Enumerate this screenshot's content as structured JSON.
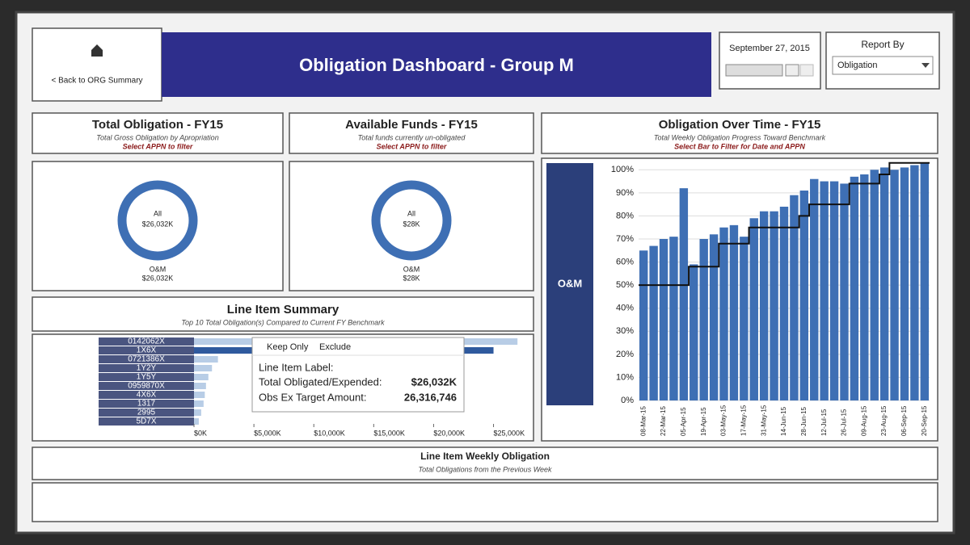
{
  "header": {
    "title": "Obligation Dashboard -  Group M",
    "back": "< Back to ORG Summary",
    "date": "September 27, 2015",
    "report_by_label": "Report By",
    "report_by_value": "Obligation"
  },
  "total_obligation": {
    "title": "Total Obligation - FY15",
    "subtitle": "Total Gross Obligation by Apropriation",
    "hint": "Select APPN to filter",
    "center_label": "All",
    "center_value": "$26,032K",
    "segment_label": "O&M",
    "segment_value": "$26,032K"
  },
  "available_funds": {
    "title": "Available Funds - FY15",
    "subtitle": "Total funds currently un-obligated",
    "hint": "Select APPN to filter",
    "center_label": "All",
    "center_value": "$28K",
    "segment_label": "O&M",
    "segment_value": "$28K"
  },
  "line_item_summary": {
    "title": "Line Item Summary",
    "subtitle": "Top 10 Total Obligation(s) Compared to Current FY Benchmark",
    "categories": [
      "0142062X",
      "1X6X",
      "0721386X",
      "1Y2Y",
      "1Y5Y",
      "0959870X",
      "4X6X",
      "1317",
      "2995",
      "5D7X"
    ],
    "values": [
      27000,
      25000,
      2000,
      1500,
      1200,
      1000,
      900,
      800,
      600,
      400
    ],
    "xlim": [
      0,
      28000
    ],
    "xticks": [
      {
        "value": 0,
        "label": "$0K"
      },
      {
        "value": 5000,
        "label": "$5,000K"
      },
      {
        "value": 10000,
        "label": "$10,000K"
      },
      {
        "value": 15000,
        "label": "$15,000K"
      },
      {
        "value": 20000,
        "label": "$20,000K"
      },
      {
        "value": 25000,
        "label": "$25,000K"
      }
    ]
  },
  "tooltip": {
    "keep_only": "Keep Only",
    "exclude": "Exclude",
    "label_key": "Line Item Label:",
    "total_key": "Total Obligated/Expended:",
    "total_value": "$26,032K",
    "target_key": "Obs Ex Target Amount:",
    "target_value": "26,316,746"
  },
  "obligation_over_time": {
    "title": "Obligation Over Time - FY15",
    "subtitle": "Total Weekly Obligation Progress Toward Benchmark",
    "hint": "Select Bar to Filter for Date and APPN",
    "appn": "O&M",
    "x": [
      "08-Mar-15",
      null,
      "22-Mar-15",
      null,
      "05-Apr-15",
      null,
      "19-Apr-15",
      null,
      "03-May-15",
      null,
      "17-May-15",
      null,
      "31-May-15",
      null,
      "14-Jun-15",
      null,
      "28-Jun-15",
      null,
      "12-Jul-15",
      null,
      "26-Jul-15",
      null,
      "09-Aug-15",
      null,
      "23-Aug-15",
      null,
      "06-Sep-15",
      null,
      "20-Sep-15"
    ],
    "bars": [
      65,
      67,
      70,
      71,
      92,
      59,
      70,
      72,
      75,
      76,
      71,
      79,
      82,
      82,
      84,
      89,
      91,
      96,
      95,
      95,
      94,
      97,
      98,
      100,
      101,
      100,
      101,
      102,
      103
    ],
    "benchmark": [
      50,
      50,
      50,
      50,
      50,
      58,
      58,
      58,
      68,
      68,
      68,
      75,
      75,
      75,
      75,
      75,
      80,
      85,
      85,
      85,
      85,
      94,
      94,
      94,
      98,
      103,
      103,
      103,
      103
    ],
    "ylim": [
      0,
      105
    ],
    "yticks": [
      {
        "value": 0,
        "label": "0%"
      },
      {
        "value": 10,
        "label": "10%"
      },
      {
        "value": 20,
        "label": "20%"
      },
      {
        "value": 30,
        "label": "30%"
      },
      {
        "value": 40,
        "label": "40%"
      },
      {
        "value": 50,
        "label": "50%"
      },
      {
        "value": 60,
        "label": "60%"
      },
      {
        "value": 70,
        "label": "70%"
      },
      {
        "value": 80,
        "label": "80%"
      },
      {
        "value": 90,
        "label": "90%"
      },
      {
        "value": 100,
        "label": "100%"
      }
    ]
  },
  "weekly": {
    "title": "Line Item Weekly Obligation",
    "subtitle": "Total Obligations from the Previous Week"
  }
}
